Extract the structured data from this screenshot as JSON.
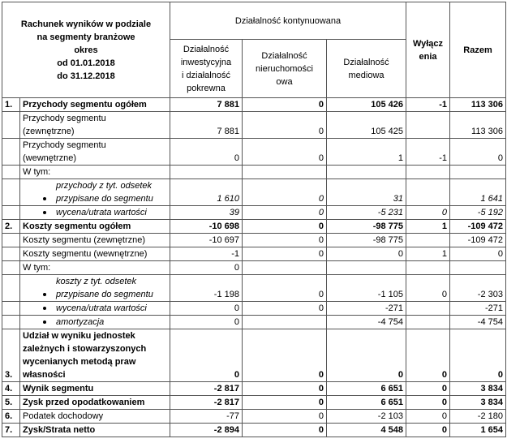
{
  "header": {
    "title": [
      "Rachunek wyników w podziale",
      "na segmenty branżowe",
      "okres",
      "od 01.01.2018",
      "do 31.12.2018"
    ],
    "group": [
      "Działalność kontynuowana"
    ],
    "columns": [
      [
        "Działalność",
        "inwestycyjna",
        "i działalność",
        "pokrewna"
      ],
      [
        "Działalność",
        "nieruchomości",
        "owa"
      ],
      [
        "Działalność",
        "mediowa"
      ],
      [
        "Wyłącz",
        "enia"
      ],
      [
        "Razem"
      ]
    ]
  },
  "rows": [
    {
      "num": "1.",
      "label": [
        "Przychody segmentu ogółem"
      ],
      "bold": true,
      "values": [
        "7 881",
        "0",
        "105 426",
        "-1",
        "113 306"
      ]
    },
    {
      "num": null,
      "label": [
        "Przychody segmentu",
        "(zewnętrzne)"
      ],
      "values": [
        "7 881",
        "0",
        "105 425",
        null,
        "113 306"
      ]
    },
    {
      "num": null,
      "label": [
        "Przychody segmentu",
        "(wewnętrzne)"
      ],
      "values": [
        "0",
        "0",
        "1",
        "-1",
        "0"
      ]
    },
    {
      "num": null,
      "label": [
        "W tym:"
      ],
      "values": [
        null,
        null,
        null,
        null,
        null
      ]
    },
    {
      "num": null,
      "label": [
        "przychody z tyt. odsetek",
        "przypisane do segmentu"
      ],
      "bullet": true,
      "italic_label": true,
      "italic_values": true,
      "values": [
        "1 610",
        "0",
        "31",
        null,
        "1 641"
      ]
    },
    {
      "num": null,
      "label": [
        "wycena/utrata wartości"
      ],
      "bullet": true,
      "italic_label": true,
      "italic_values": true,
      "values": [
        "39",
        "0",
        "-5 231",
        "0",
        "-5 192"
      ]
    },
    {
      "num": "2.",
      "label": [
        "Koszty segmentu ogółem"
      ],
      "bold": true,
      "values": [
        "-10 698",
        "0",
        "-98 775",
        "1",
        "-109 472"
      ]
    },
    {
      "num": null,
      "label": [
        "Koszty segmentu (zewnętrzne)"
      ],
      "values": [
        "-10 697",
        "0",
        "-98 775",
        null,
        "-109 472"
      ]
    },
    {
      "num": null,
      "label": [
        "Koszty segmentu (wewnętrzne)"
      ],
      "values": [
        "-1",
        "0",
        "0",
        "1",
        "0"
      ]
    },
    {
      "num": null,
      "label": [
        "W tym:"
      ],
      "values": [
        "0",
        null,
        null,
        null,
        null
      ]
    },
    {
      "num": null,
      "label": [
        "koszty z tyt. odsetek",
        "przypisane do segmentu"
      ],
      "bullet": true,
      "italic_label": true,
      "values": [
        "-1 198",
        "0",
        "-1 105",
        "0",
        "-2 303"
      ]
    },
    {
      "num": null,
      "label": [
        "wycena/utrata wartości"
      ],
      "bullet": true,
      "italic_label": true,
      "values": [
        "0",
        "0",
        "-271",
        null,
        "-271"
      ]
    },
    {
      "num": null,
      "label": [
        "amortyzacja"
      ],
      "bullet": true,
      "italic_label": true,
      "values": [
        "0",
        null,
        "-4 754",
        null,
        "-4 754"
      ]
    },
    {
      "num": "3.",
      "label": [
        "Udział w wyniku jednostek",
        "zależnych i stowarzyszonych",
        "wycenianych metodą praw",
        "własności"
      ],
      "bold": true,
      "values": [
        "0",
        "0",
        "0",
        "0",
        "0"
      ]
    },
    {
      "num": "4.",
      "label": [
        "Wynik segmentu"
      ],
      "bold": true,
      "values": [
        "-2 817",
        "0",
        "6 651",
        "0",
        "3 834"
      ]
    },
    {
      "num": "5.",
      "label": [
        "Zysk przed opodatkowaniem"
      ],
      "bold": true,
      "values": [
        "-2 817",
        "0",
        "6 651",
        "0",
        "3 834"
      ]
    },
    {
      "num": "6.",
      "label": [
        "Podatek dochodowy"
      ],
      "values": [
        "-77",
        "0",
        "-2 103",
        "0",
        "-2 180"
      ]
    },
    {
      "num": "7.",
      "label": [
        "Zysk/Strata netto"
      ],
      "bold": true,
      "values": [
        "-2 894",
        "0",
        "4 548",
        "0",
        "1 654"
      ]
    }
  ]
}
